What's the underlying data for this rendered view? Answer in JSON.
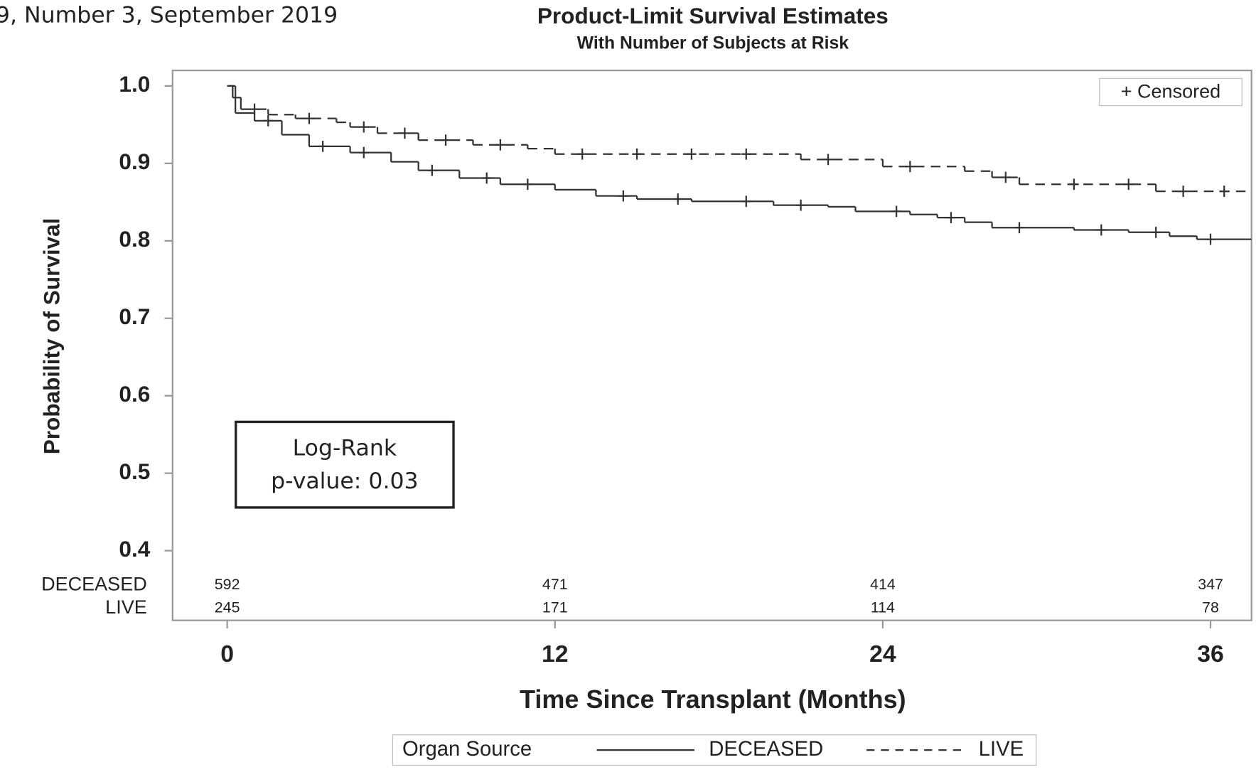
{
  "header": "9, Number 3, September 2019",
  "chart_data": {
    "type": "step",
    "title": "Product-Limit Survival Estimates",
    "subtitle": "With Number of Subjects at Risk",
    "x_label": "Time Since Transplant (Months)",
    "y_label": "Probability of Survival",
    "xlim": [
      -2,
      37.5
    ],
    "ylim": [
      0.31,
      1.02
    ],
    "xticks": [
      0,
      12,
      24,
      36
    ],
    "yticks": [
      0.4,
      0.5,
      0.6,
      0.7,
      0.8,
      0.9,
      {
        "value": 1,
        "label": "1.0"
      }
    ],
    "legend_title": "Organ Source",
    "censor_legend": "+ Censored",
    "annotation": [
      "Log-Rank",
      "p-value: 0.03"
    ],
    "series": [
      {
        "name": "DECEASED",
        "color": "#333333",
        "dash": false,
        "x": [
          0,
          0.3,
          1,
          2,
          3,
          4.5,
          6,
          7,
          8.5,
          10,
          12,
          13.5,
          15,
          17,
          20,
          22,
          23,
          25,
          26,
          27,
          28,
          31,
          33,
          34.5,
          35.5
        ],
        "values": [
          1,
          0.965,
          0.955,
          0.937,
          0.922,
          0.914,
          0.902,
          0.891,
          0.881,
          0.873,
          0.866,
          0.858,
          0.854,
          0.851,
          0.846,
          0.844,
          0.838,
          0.834,
          0.83,
          0.824,
          0.817,
          0.814,
          0.811,
          0.806,
          0.802
        ],
        "censored": [
          1.5,
          3.5,
          5,
          7.5,
          9.5,
          11,
          14.5,
          16.5,
          19,
          21,
          24.5,
          26.5,
          29,
          32,
          34,
          36
        ]
      },
      {
        "name": "LIVE",
        "color": "#333333",
        "dash": true,
        "x": [
          0,
          0.2,
          0.5,
          1.5,
          2.5,
          4,
          4.5,
          5.5,
          7,
          9,
          11,
          12,
          21,
          24,
          27,
          28,
          29,
          34
        ],
        "values": [
          1,
          0.985,
          0.97,
          0.963,
          0.958,
          0.953,
          0.947,
          0.939,
          0.93,
          0.924,
          0.919,
          0.912,
          0.905,
          0.896,
          0.89,
          0.882,
          0.873,
          0.864
        ],
        "censored": [
          1,
          3,
          5,
          6.5,
          8,
          10,
          13,
          15,
          17,
          19,
          22,
          25,
          28.5,
          31,
          33,
          35,
          36.5
        ]
      }
    ],
    "risk_table": [
      {
        "name": "DECEASED",
        "values": [
          592,
          471,
          414,
          347
        ]
      },
      {
        "name": "LIVE",
        "values": [
          245,
          171,
          114,
          78
        ]
      }
    ]
  }
}
